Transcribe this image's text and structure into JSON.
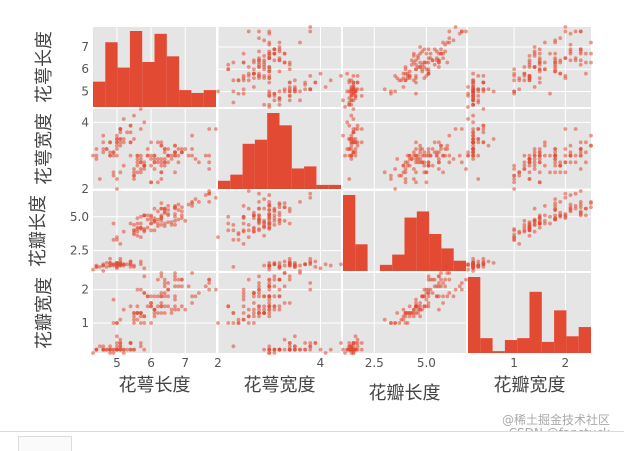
{
  "chart_data": {
    "type": "scatter",
    "subtype": "scatter-matrix",
    "title": "",
    "variables": [
      "花萼长度",
      "花萼宽度",
      "花瓣长度",
      "花瓣宽度"
    ],
    "ranges": [
      [
        4.3,
        7.9
      ],
      [
        2.0,
        4.4
      ],
      [
        1.0,
        6.9
      ],
      [
        0.1,
        2.5
      ]
    ],
    "ticks": [
      [
        5,
        6,
        7
      ],
      [
        2,
        4
      ],
      [
        2.5,
        5.0
      ],
      [
        1,
        2
      ]
    ],
    "tick_labels": [
      [
        "5",
        "6",
        "7"
      ],
      [
        "2",
        "4"
      ],
      [
        "2.5",
        "5.0"
      ],
      [
        "1",
        "2"
      ]
    ],
    "diagonal": "histogram",
    "hist_counts": [
      [
        9,
        23,
        14,
        27,
        16,
        26,
        18,
        6,
        5,
        6
      ],
      [
        4,
        7,
        22,
        24,
        37,
        31,
        10,
        11,
        2,
        2
      ],
      [
        37,
        13,
        0,
        3,
        8,
        26,
        29,
        18,
        11,
        5
      ],
      [
        41,
        8,
        1,
        7,
        8,
        33,
        6,
        23,
        9,
        14
      ]
    ],
    "grid": true,
    "color": "#e24a33",
    "background": "#e5e5e5",
    "samples": [
      [
        5.1,
        3.5,
        1.4,
        0.2
      ],
      [
        4.9,
        3.0,
        1.4,
        0.2
      ],
      [
        4.7,
        3.2,
        1.3,
        0.2
      ],
      [
        4.6,
        3.1,
        1.5,
        0.2
      ],
      [
        5.0,
        3.6,
        1.4,
        0.2
      ],
      [
        5.4,
        3.9,
        1.7,
        0.4
      ],
      [
        4.6,
        3.4,
        1.4,
        0.3
      ],
      [
        5.0,
        3.4,
        1.5,
        0.2
      ],
      [
        4.4,
        2.9,
        1.4,
        0.2
      ],
      [
        4.9,
        3.1,
        1.5,
        0.1
      ],
      [
        5.4,
        3.7,
        1.5,
        0.2
      ],
      [
        4.8,
        3.4,
        1.6,
        0.2
      ],
      [
        4.8,
        3.0,
        1.4,
        0.1
      ],
      [
        4.3,
        3.0,
        1.1,
        0.1
      ],
      [
        5.8,
        4.0,
        1.2,
        0.2
      ],
      [
        5.7,
        4.4,
        1.5,
        0.4
      ],
      [
        5.4,
        3.9,
        1.3,
        0.4
      ],
      [
        5.1,
        3.5,
        1.4,
        0.3
      ],
      [
        5.7,
        3.8,
        1.7,
        0.3
      ],
      [
        5.1,
        3.8,
        1.5,
        0.3
      ],
      [
        5.4,
        3.4,
        1.7,
        0.2
      ],
      [
        5.1,
        3.7,
        1.5,
        0.4
      ],
      [
        4.6,
        3.6,
        1.0,
        0.2
      ],
      [
        5.1,
        3.3,
        1.7,
        0.5
      ],
      [
        4.8,
        3.4,
        1.9,
        0.2
      ],
      [
        5.0,
        3.0,
        1.6,
        0.2
      ],
      [
        5.0,
        3.4,
        1.6,
        0.4
      ],
      [
        5.2,
        3.5,
        1.5,
        0.2
      ],
      [
        5.2,
        3.4,
        1.4,
        0.2
      ],
      [
        4.7,
        3.2,
        1.6,
        0.2
      ],
      [
        4.8,
        3.1,
        1.6,
        0.2
      ],
      [
        5.4,
        3.4,
        1.5,
        0.4
      ],
      [
        5.2,
        4.1,
        1.5,
        0.1
      ],
      [
        5.5,
        4.2,
        1.4,
        0.2
      ],
      [
        4.9,
        3.1,
        1.5,
        0.2
      ],
      [
        5.0,
        3.2,
        1.2,
        0.2
      ],
      [
        5.5,
        3.5,
        1.3,
        0.2
      ],
      [
        4.4,
        3.0,
        1.3,
        0.2
      ],
      [
        5.1,
        3.4,
        1.5,
        0.2
      ],
      [
        5.0,
        3.5,
        1.3,
        0.3
      ],
      [
        4.5,
        2.3,
        1.3,
        0.3
      ],
      [
        4.4,
        3.2,
        1.3,
        0.2
      ],
      [
        5.0,
        3.5,
        1.6,
        0.6
      ],
      [
        5.1,
        3.8,
        1.9,
        0.4
      ],
      [
        4.8,
        3.0,
        1.4,
        0.3
      ],
      [
        5.1,
        3.8,
        1.6,
        0.2
      ],
      [
        4.6,
        3.2,
        1.4,
        0.2
      ],
      [
        5.3,
        3.7,
        1.5,
        0.2
      ],
      [
        5.0,
        3.3,
        1.4,
        0.2
      ],
      [
        7.0,
        3.2,
        4.7,
        1.4
      ],
      [
        6.4,
        3.2,
        4.5,
        1.5
      ],
      [
        6.9,
        3.1,
        4.9,
        1.5
      ],
      [
        5.5,
        2.3,
        4.0,
        1.3
      ],
      [
        6.5,
        2.8,
        4.6,
        1.5
      ],
      [
        5.7,
        2.8,
        4.5,
        1.3
      ],
      [
        6.3,
        3.3,
        4.7,
        1.6
      ],
      [
        4.9,
        2.4,
        3.3,
        1.0
      ],
      [
        6.6,
        2.9,
        4.6,
        1.3
      ],
      [
        5.2,
        2.7,
        3.9,
        1.4
      ],
      [
        5.0,
        2.0,
        3.5,
        1.0
      ],
      [
        5.9,
        3.0,
        4.2,
        1.5
      ],
      [
        6.0,
        2.2,
        4.0,
        1.0
      ],
      [
        6.1,
        2.9,
        4.7,
        1.4
      ],
      [
        5.6,
        2.9,
        3.6,
        1.3
      ],
      [
        6.7,
        3.1,
        4.4,
        1.4
      ],
      [
        5.6,
        3.0,
        4.5,
        1.5
      ],
      [
        5.8,
        2.7,
        4.1,
        1.0
      ],
      [
        6.2,
        2.2,
        4.5,
        1.5
      ],
      [
        5.6,
        2.5,
        3.9,
        1.1
      ],
      [
        5.9,
        3.2,
        4.8,
        1.8
      ],
      [
        6.1,
        2.8,
        4.0,
        1.3
      ],
      [
        6.3,
        2.5,
        4.9,
        1.5
      ],
      [
        6.1,
        2.8,
        4.7,
        1.2
      ],
      [
        6.4,
        2.9,
        4.3,
        1.3
      ],
      [
        6.6,
        3.0,
        4.4,
        1.4
      ],
      [
        6.8,
        2.8,
        4.8,
        1.4
      ],
      [
        6.7,
        3.0,
        5.0,
        1.7
      ],
      [
        6.0,
        2.9,
        4.5,
        1.5
      ],
      [
        5.7,
        2.6,
        3.5,
        1.0
      ],
      [
        5.5,
        2.4,
        3.8,
        1.1
      ],
      [
        5.5,
        2.4,
        3.7,
        1.0
      ],
      [
        5.8,
        2.7,
        3.9,
        1.2
      ],
      [
        6.0,
        2.7,
        5.1,
        1.6
      ],
      [
        5.4,
        3.0,
        4.5,
        1.5
      ],
      [
        6.0,
        3.4,
        4.5,
        1.6
      ],
      [
        6.7,
        3.1,
        4.7,
        1.5
      ],
      [
        6.3,
        2.3,
        4.4,
        1.3
      ],
      [
        5.6,
        3.0,
        4.1,
        1.3
      ],
      [
        5.5,
        2.5,
        4.0,
        1.3
      ],
      [
        5.5,
        2.6,
        4.4,
        1.2
      ],
      [
        6.1,
        3.0,
        4.6,
        1.4
      ],
      [
        5.8,
        2.6,
        4.0,
        1.2
      ],
      [
        5.0,
        2.3,
        3.3,
        1.0
      ],
      [
        5.6,
        2.7,
        4.2,
        1.3
      ],
      [
        5.7,
        3.0,
        4.2,
        1.2
      ],
      [
        5.7,
        2.9,
        4.2,
        1.3
      ],
      [
        6.2,
        2.9,
        4.3,
        1.3
      ],
      [
        5.1,
        2.5,
        3.0,
        1.1
      ],
      [
        5.7,
        2.8,
        4.1,
        1.3
      ],
      [
        6.3,
        3.3,
        6.0,
        2.5
      ],
      [
        5.8,
        2.7,
        5.1,
        1.9
      ],
      [
        7.1,
        3.0,
        5.9,
        2.1
      ],
      [
        6.3,
        2.9,
        5.6,
        1.8
      ],
      [
        6.5,
        3.0,
        5.8,
        2.2
      ],
      [
        7.6,
        3.0,
        6.6,
        2.1
      ],
      [
        4.9,
        2.5,
        4.5,
        1.7
      ],
      [
        7.3,
        2.9,
        6.3,
        1.8
      ],
      [
        6.7,
        2.5,
        5.8,
        1.8
      ],
      [
        7.2,
        3.6,
        6.1,
        2.5
      ],
      [
        6.5,
        3.2,
        5.1,
        2.0
      ],
      [
        6.4,
        2.7,
        5.3,
        1.9
      ],
      [
        6.8,
        3.0,
        5.5,
        2.1
      ],
      [
        5.7,
        2.5,
        5.0,
        2.0
      ],
      [
        5.8,
        2.8,
        5.1,
        2.4
      ],
      [
        6.4,
        3.2,
        5.3,
        2.3
      ],
      [
        6.5,
        3.0,
        5.5,
        1.8
      ],
      [
        7.7,
        3.8,
        6.7,
        2.2
      ],
      [
        7.7,
        2.6,
        6.9,
        2.3
      ],
      [
        6.0,
        2.2,
        5.0,
        1.5
      ],
      [
        6.9,
        3.2,
        5.7,
        2.3
      ],
      [
        5.6,
        2.8,
        4.9,
        2.0
      ],
      [
        7.7,
        2.8,
        6.7,
        2.0
      ],
      [
        6.3,
        2.7,
        4.9,
        1.8
      ],
      [
        6.7,
        3.3,
        5.7,
        2.1
      ],
      [
        7.2,
        3.2,
        6.0,
        1.8
      ],
      [
        6.2,
        2.8,
        4.8,
        1.8
      ],
      [
        6.1,
        3.0,
        4.9,
        1.8
      ],
      [
        6.4,
        2.8,
        5.6,
        2.1
      ],
      [
        7.2,
        3.0,
        5.8,
        1.6
      ],
      [
        7.4,
        2.8,
        6.1,
        1.9
      ],
      [
        7.9,
        3.8,
        6.4,
        2.0
      ],
      [
        6.4,
        2.8,
        5.6,
        2.2
      ],
      [
        6.3,
        2.8,
        5.1,
        1.5
      ],
      [
        6.1,
        2.6,
        5.6,
        1.4
      ],
      [
        7.7,
        3.0,
        6.1,
        2.3
      ],
      [
        6.3,
        3.4,
        5.6,
        2.4
      ],
      [
        6.4,
        3.1,
        5.5,
        1.8
      ],
      [
        6.0,
        3.0,
        4.8,
        1.8
      ],
      [
        6.9,
        3.1,
        5.4,
        2.1
      ],
      [
        6.7,
        3.1,
        5.6,
        2.4
      ],
      [
        6.9,
        3.1,
        5.1,
        2.3
      ],
      [
        5.8,
        2.7,
        5.1,
        1.9
      ],
      [
        6.8,
        3.2,
        5.9,
        2.3
      ],
      [
        6.7,
        3.3,
        5.7,
        2.5
      ],
      [
        6.7,
        3.0,
        5.2,
        2.3
      ],
      [
        6.3,
        2.5,
        5.0,
        1.9
      ],
      [
        6.5,
        3.0,
        5.2,
        2.0
      ],
      [
        6.2,
        3.4,
        5.4,
        2.3
      ],
      [
        5.9,
        3.0,
        5.1,
        1.8
      ]
    ]
  },
  "watermark": {
    "line1": "@稀土掘金技术社区",
    "line2": "CSDN @fanstuck"
  }
}
